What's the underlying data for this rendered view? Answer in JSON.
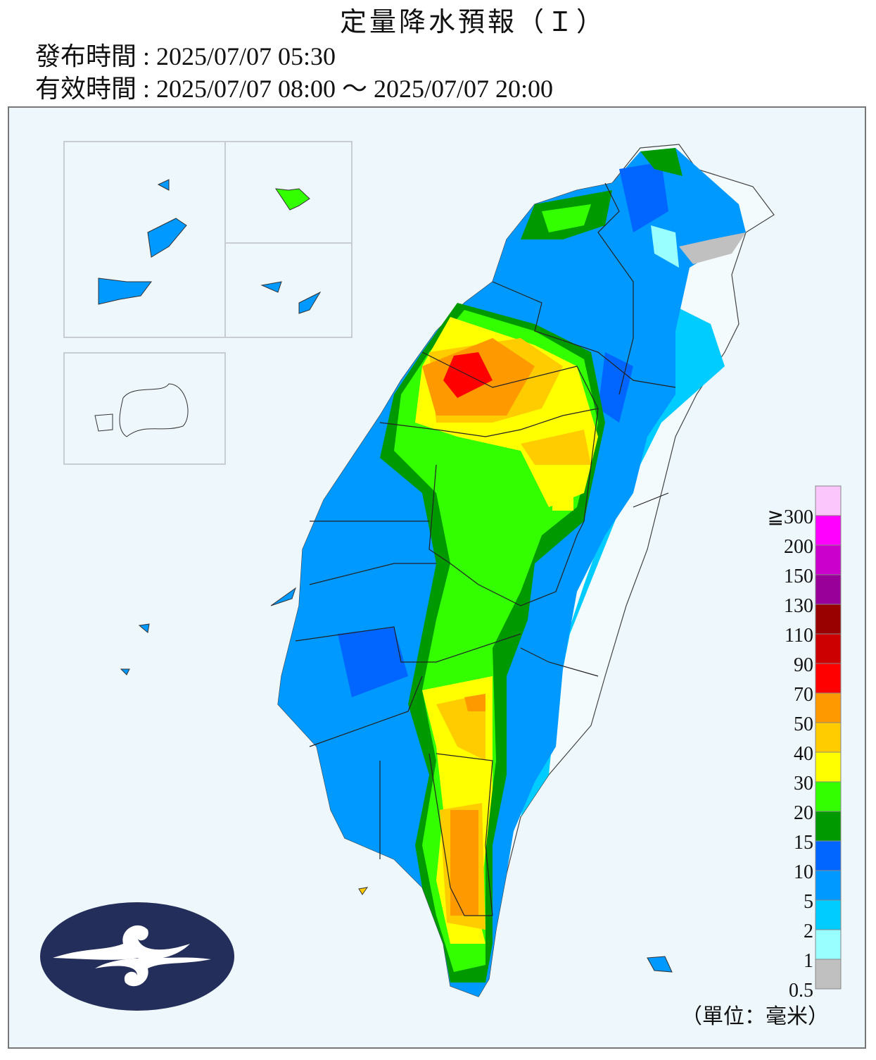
{
  "header": {
    "title": "定量降水預報（Ｉ）",
    "issued": "發布時間 : 2025/07/07 05:30",
    "valid": "有效時間 : 2025/07/07 08:00 ～ 2025/07/07 20:00"
  },
  "legend": {
    "items": [
      {
        "label": "≧300",
        "color": "#fbc6fb"
      },
      {
        "label": "200",
        "color": "#ff00ff"
      },
      {
        "label": "150",
        "color": "#cc00cc"
      },
      {
        "label": "130",
        "color": "#990099"
      },
      {
        "label": "110",
        "color": "#990000"
      },
      {
        "label": "90",
        "color": "#cc0000"
      },
      {
        "label": "70",
        "color": "#ff0000"
      },
      {
        "label": "50",
        "color": "#ff9900"
      },
      {
        "label": "40",
        "color": "#ffcc00"
      },
      {
        "label": "30",
        "color": "#ffff00"
      },
      {
        "label": "20",
        "color": "#33ff00"
      },
      {
        "label": "15",
        "color": "#009900"
      },
      {
        "label": "10",
        "color": "#0066ff"
      },
      {
        "label": "5",
        "color": "#0099ff"
      },
      {
        "label": "2",
        "color": "#00ccff"
      },
      {
        "label": "1",
        "color": "#99ffff"
      },
      {
        "label": "0.5",
        "color": "#c0c0c0"
      }
    ],
    "unit": "（單位：毫米）"
  }
}
